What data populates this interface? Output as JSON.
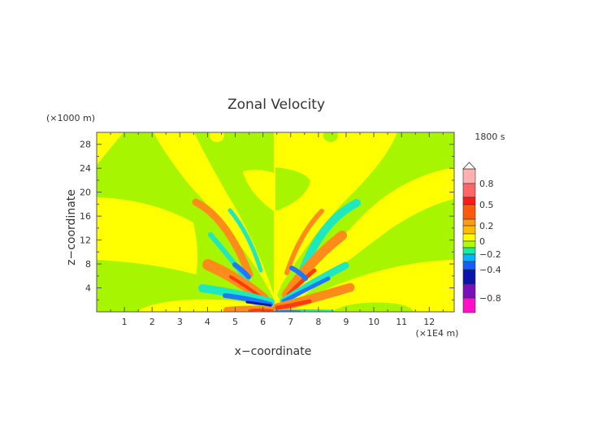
{
  "chart_data": {
    "type": "heatmap",
    "subtype": "filled-contour",
    "title": "Zonal Velocity",
    "xlabel": "x−coordinate",
    "ylabel": "z−coordinate",
    "x_unit": "(×1E4 m)",
    "y_unit": "(×1000 m)",
    "time_label": "1800 s",
    "xlim": [
      0,
      12.9
    ],
    "ylim": [
      0,
      30
    ],
    "xticks": [
      1,
      2,
      3,
      4,
      5,
      6,
      7,
      8,
      9,
      10,
      11,
      12
    ],
    "yticks": [
      4,
      8,
      12,
      16,
      20,
      24,
      28
    ],
    "grid": false,
    "field_colors": {
      "zero_pos": "#ffff00",
      "zero_neg": "#a8f500",
      "pos_low": "#ff8c1a",
      "pos_mid": "#ff3a10",
      "neg_low": "#1ee8c0",
      "neg_mid": "#1e78ff",
      "neg_high": "#0a1aa8"
    },
    "colorbar": {
      "colors": [
        "#ffb0b0",
        "#ff6666",
        "#ff1a1a",
        "#ff5a0a",
        "#ff9a14",
        "#ffbb00",
        "#ffff00",
        "#aaff00",
        "#10f0a0",
        "#00b4ff",
        "#1060ff",
        "#0a14a8",
        "#7a10b8",
        "#ff10c8"
      ],
      "labels": [
        {
          "text": "0.8",
          "value": 0.8
        },
        {
          "text": "0.5",
          "value": 0.5
        },
        {
          "text": "0.2",
          "value": 0.2
        },
        {
          "text": "0",
          "value": 0
        },
        {
          "text": "−0.2",
          "value": -0.2
        },
        {
          "text": "−0.4",
          "value": -0.4
        },
        {
          "text": "−0.8",
          "value": -0.8
        }
      ]
    }
  }
}
